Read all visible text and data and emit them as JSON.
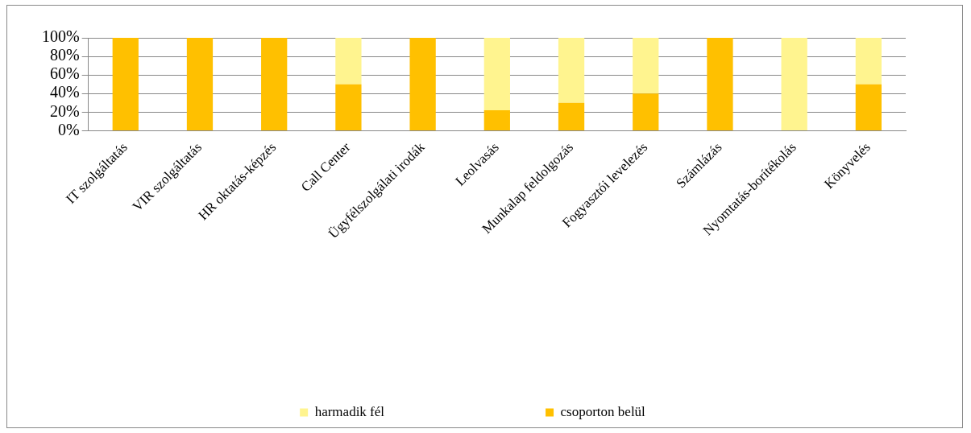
{
  "chart_data": {
    "type": "bar",
    "stacked": true,
    "categories": [
      "IT szolgáltatás",
      "VIR szolgáltatás",
      "HR oktatás-képzés",
      "Call Center",
      "Ügyfélszolgálati irodák",
      "Leolvasás",
      "Munkalap feldolgozás",
      "Fogyasztói levelezés",
      "Számlázás",
      "Nyomtatás-borítékolás",
      "Könyvelés"
    ],
    "series": [
      {
        "name": "csoporton belül",
        "color": "#ffc000",
        "values": [
          100,
          100,
          100,
          50,
          100,
          22,
          30,
          40,
          100,
          0,
          50
        ]
      },
      {
        "name": "harmadik fél",
        "color": "#fff48f",
        "values": [
          0,
          0,
          0,
          50,
          0,
          78,
          70,
          60,
          0,
          100,
          50
        ]
      }
    ],
    "ylim": [
      0,
      100
    ],
    "yticks": [
      {
        "value": 0,
        "label": "0%"
      },
      {
        "value": 20,
        "label": "20%"
      },
      {
        "value": 40,
        "label": "40%"
      },
      {
        "value": 60,
        "label": "60%"
      },
      {
        "value": 80,
        "label": "80%"
      },
      {
        "value": 100,
        "label": "100%"
      }
    ],
    "grid": "y",
    "legend": "bottom"
  }
}
